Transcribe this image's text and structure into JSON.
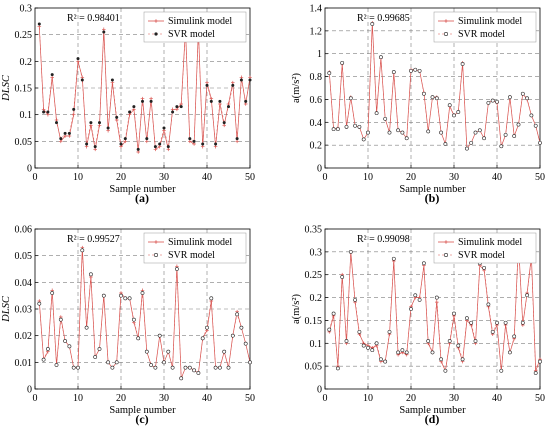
{
  "chart_data": [
    {
      "type": "line",
      "panel_label": "(a)",
      "xlabel": "Sample number",
      "ylabel": "DLSC",
      "ylabel_italic": true,
      "xlim": [
        0,
        50
      ],
      "ylim": [
        0,
        0.3
      ],
      "xticks": [
        "0",
        "10",
        "20",
        "30",
        "40",
        "50"
      ],
      "yticks": [
        "0",
        "0.05",
        "0.1",
        "0.15",
        "0.2",
        "0.25",
        "0.3"
      ],
      "grid": true,
      "annotation": "R² = 0.98401",
      "legend": {
        "position": "top-right",
        "entries": [
          "Simulink model",
          "SVR model"
        ]
      },
      "x": [
        1,
        2,
        3,
        4,
        5,
        6,
        7,
        8,
        9,
        10,
        11,
        12,
        13,
        14,
        15,
        16,
        17,
        18,
        19,
        20,
        21,
        22,
        23,
        24,
        25,
        26,
        27,
        28,
        29,
        30,
        31,
        32,
        33,
        34,
        35,
        36,
        37,
        38,
        39,
        40,
        41,
        42,
        43,
        44,
        45,
        46,
        47,
        48,
        49,
        50
      ],
      "series": [
        {
          "name": "Simulink model",
          "values": [
            0.265,
            0.11,
            0.1,
            0.17,
            0.09,
            0.05,
            0.06,
            0.06,
            0.1,
            0.2,
            0.17,
            0.04,
            0.08,
            0.035,
            0.08,
            0.26,
            0.07,
            0.16,
            0.09,
            0.04,
            0.05,
            0.1,
            0.11,
            0.03,
            0.13,
            0.05,
            0.13,
            0.035,
            0.04,
            0.07,
            0.035,
            0.11,
            0.11,
            0.12,
            0.26,
            0.05,
            0.045,
            0.26,
            0.04,
            0.16,
            0.13,
            0.04,
            0.12,
            0.08,
            0.12,
            0.16,
            0.05,
            0.17,
            0.12,
            0.17
          ]
        },
        {
          "name": "SVR model",
          "values": [
            0.27,
            0.105,
            0.105,
            0.175,
            0.085,
            0.055,
            0.065,
            0.065,
            0.11,
            0.205,
            0.165,
            0.045,
            0.085,
            0.04,
            0.085,
            0.255,
            0.075,
            0.165,
            0.095,
            0.045,
            0.055,
            0.105,
            0.115,
            0.035,
            0.125,
            0.055,
            0.125,
            0.04,
            0.045,
            0.075,
            0.04,
            0.105,
            0.115,
            0.115,
            0.255,
            0.055,
            0.05,
            0.255,
            0.045,
            0.155,
            0.125,
            0.045,
            0.125,
            0.085,
            0.115,
            0.155,
            0.055,
            0.165,
            0.125,
            0.165
          ]
        }
      ]
    },
    {
      "type": "line",
      "panel_label": "(b)",
      "xlabel": "Sample number",
      "ylabel": "a(m/s²)",
      "ylabel_italic": false,
      "xlim": [
        0,
        50
      ],
      "ylim": [
        0,
        1.4
      ],
      "xticks": [
        "0",
        "10",
        "20",
        "30",
        "40",
        "50"
      ],
      "yticks": [
        "0",
        "0.2",
        "0.4",
        "0.6",
        "0.8",
        "1",
        "1.2",
        "1.4"
      ],
      "grid": true,
      "annotation": "R² = 0.99685",
      "legend": {
        "position": "top-right",
        "entries": [
          "Simulink model",
          "SVR model"
        ]
      },
      "x": [
        1,
        2,
        3,
        4,
        5,
        6,
        7,
        8,
        9,
        10,
        11,
        12,
        13,
        14,
        15,
        16,
        17,
        18,
        19,
        20,
        21,
        22,
        23,
        24,
        25,
        26,
        27,
        28,
        29,
        30,
        31,
        32,
        33,
        34,
        35,
        36,
        37,
        38,
        39,
        40,
        41,
        42,
        43,
        44,
        45,
        46,
        47,
        48,
        49,
        50
      ],
      "series": [
        {
          "name": "Simulink model",
          "values": [
            0.84,
            0.34,
            0.35,
            0.91,
            0.36,
            0.62,
            0.37,
            0.36,
            0.25,
            0.31,
            1.27,
            0.48,
            0.96,
            0.43,
            0.31,
            0.83,
            0.33,
            0.31,
            0.26,
            0.86,
            0.86,
            0.85,
            0.66,
            0.32,
            0.62,
            0.62,
            0.31,
            0.21,
            0.54,
            0.46,
            0.49,
            0.92,
            0.17,
            0.22,
            0.31,
            0.33,
            0.26,
            0.57,
            0.59,
            0.57,
            0.19,
            0.29,
            0.62,
            0.28,
            0.38,
            0.65,
            0.6,
            0.46,
            0.37,
            0.22
          ]
        },
        {
          "name": "SVR model",
          "values": [
            0.83,
            0.34,
            0.34,
            0.92,
            0.36,
            0.61,
            0.37,
            0.36,
            0.25,
            0.31,
            1.26,
            0.48,
            0.97,
            0.43,
            0.31,
            0.84,
            0.33,
            0.31,
            0.26,
            0.85,
            0.86,
            0.85,
            0.65,
            0.32,
            0.62,
            0.61,
            0.31,
            0.21,
            0.55,
            0.46,
            0.49,
            0.91,
            0.17,
            0.22,
            0.31,
            0.33,
            0.26,
            0.57,
            0.59,
            0.58,
            0.19,
            0.29,
            0.62,
            0.28,
            0.38,
            0.65,
            0.61,
            0.46,
            0.37,
            0.22
          ]
        }
      ]
    },
    {
      "type": "line",
      "panel_label": "(c)",
      "xlabel": "Sample number",
      "ylabel": "DLSC",
      "ylabel_italic": true,
      "xlim": [
        0,
        50
      ],
      "ylim": [
        0,
        0.06
      ],
      "xticks": [
        "0",
        "10",
        "20",
        "30",
        "40",
        "50"
      ],
      "yticks": [
        "0",
        "0.01",
        "0.02",
        "0.03",
        "0.04",
        "0.05",
        "0.06"
      ],
      "grid": true,
      "annotation": "R² = 0.99527",
      "legend": {
        "position": "top-right",
        "entries": [
          "Simulink model",
          "SVR model"
        ]
      },
      "x": [
        1,
        2,
        3,
        4,
        5,
        6,
        7,
        8,
        9,
        10,
        11,
        12,
        13,
        14,
        15,
        16,
        17,
        18,
        19,
        20,
        21,
        22,
        23,
        24,
        25,
        26,
        27,
        28,
        29,
        30,
        31,
        32,
        33,
        34,
        35,
        36,
        37,
        38,
        39,
        40,
        41,
        42,
        43,
        44,
        45,
        46,
        47,
        48,
        49,
        50
      ],
      "series": [
        {
          "name": "Simulink model",
          "values": [
            0.033,
            0.011,
            0.014,
            0.037,
            0.009,
            0.027,
            0.018,
            0.016,
            0.008,
            0.008,
            0.053,
            0.023,
            0.042,
            0.012,
            0.015,
            0.035,
            0.01,
            0.008,
            0.01,
            0.036,
            0.034,
            0.034,
            0.025,
            0.019,
            0.037,
            0.014,
            0.009,
            0.008,
            0.02,
            0.01,
            0.014,
            0.008,
            0.046,
            0.004,
            0.008,
            0.008,
            0.007,
            0.006,
            0.019,
            0.022,
            0.033,
            0.008,
            0.008,
            0.014,
            0.008,
            0.02,
            0.029,
            0.023,
            0.017,
            0.01
          ]
        },
        {
          "name": "SVR model",
          "values": [
            0.032,
            0.011,
            0.015,
            0.036,
            0.009,
            0.026,
            0.018,
            0.016,
            0.008,
            0.008,
            0.052,
            0.023,
            0.043,
            0.012,
            0.015,
            0.035,
            0.01,
            0.008,
            0.01,
            0.035,
            0.034,
            0.034,
            0.026,
            0.019,
            0.036,
            0.014,
            0.009,
            0.008,
            0.02,
            0.01,
            0.014,
            0.008,
            0.045,
            0.004,
            0.008,
            0.008,
            0.007,
            0.006,
            0.019,
            0.023,
            0.034,
            0.008,
            0.008,
            0.014,
            0.008,
            0.02,
            0.028,
            0.023,
            0.017,
            0.01
          ]
        }
      ]
    },
    {
      "type": "line",
      "panel_label": "(d)",
      "xlabel": "Sample number",
      "ylabel": "a(m/s²)",
      "ylabel_italic": false,
      "xlim": [
        0,
        50
      ],
      "ylim": [
        0,
        0.35
      ],
      "xticks": [
        "0",
        "10",
        "20",
        "30",
        "40",
        "50"
      ],
      "yticks": [
        "0",
        "0.05",
        "0.1",
        "0.15",
        "0.2",
        "0.25",
        "0.3",
        "0.35"
      ],
      "grid": true,
      "annotation": "R² = 0.99098",
      "legend": {
        "position": "top-right",
        "entries": [
          "Simulink model",
          "SVR model"
        ]
      },
      "x": [
        1,
        2,
        3,
        4,
        5,
        6,
        7,
        8,
        9,
        10,
        11,
        12,
        13,
        14,
        15,
        16,
        17,
        18,
        19,
        20,
        21,
        22,
        23,
        24,
        25,
        26,
        27,
        28,
        29,
        30,
        31,
        32,
        33,
        34,
        35,
        36,
        37,
        38,
        39,
        40,
        41,
        42,
        43,
        44,
        45,
        46,
        47,
        48,
        49,
        50
      ],
      "series": [
        {
          "name": "Simulink model",
          "values": [
            0.125,
            0.16,
            0.05,
            0.25,
            0.1,
            0.3,
            0.19,
            0.12,
            0.1,
            0.095,
            0.09,
            0.095,
            0.06,
            0.06,
            0.12,
            0.28,
            0.075,
            0.08,
            0.075,
            0.18,
            0.2,
            0.2,
            0.27,
            0.1,
            0.08,
            0.19,
            0.06,
            0.04,
            0.1,
            0.16,
            0.09,
            0.06,
            0.15,
            0.14,
            0.1,
            0.27,
            0.26,
            0.18,
            0.12,
            0.14,
            0.04,
            0.14,
            0.08,
            0.11,
            0.32,
            0.14,
            0.21,
            0.29,
            0.04,
            0.065
          ]
        },
        {
          "name": "SVR model",
          "values": [
            0.13,
            0.165,
            0.045,
            0.245,
            0.105,
            0.3,
            0.195,
            0.125,
            0.095,
            0.09,
            0.085,
            0.1,
            0.065,
            0.06,
            0.125,
            0.285,
            0.08,
            0.085,
            0.08,
            0.175,
            0.205,
            0.195,
            0.275,
            0.105,
            0.08,
            0.2,
            0.065,
            0.04,
            0.105,
            0.165,
            0.095,
            0.065,
            0.155,
            0.145,
            0.105,
            0.275,
            0.265,
            0.185,
            0.125,
            0.145,
            0.04,
            0.145,
            0.08,
            0.115,
            0.31,
            0.145,
            0.205,
            0.285,
            0.035,
            0.06
          ]
        }
      ]
    }
  ],
  "style": {
    "simulink_color": "#d9534f",
    "svr_color": "#222222",
    "grid_color": "#7f7f7f",
    "axis_color": "#000000",
    "text_color": "#000000"
  }
}
